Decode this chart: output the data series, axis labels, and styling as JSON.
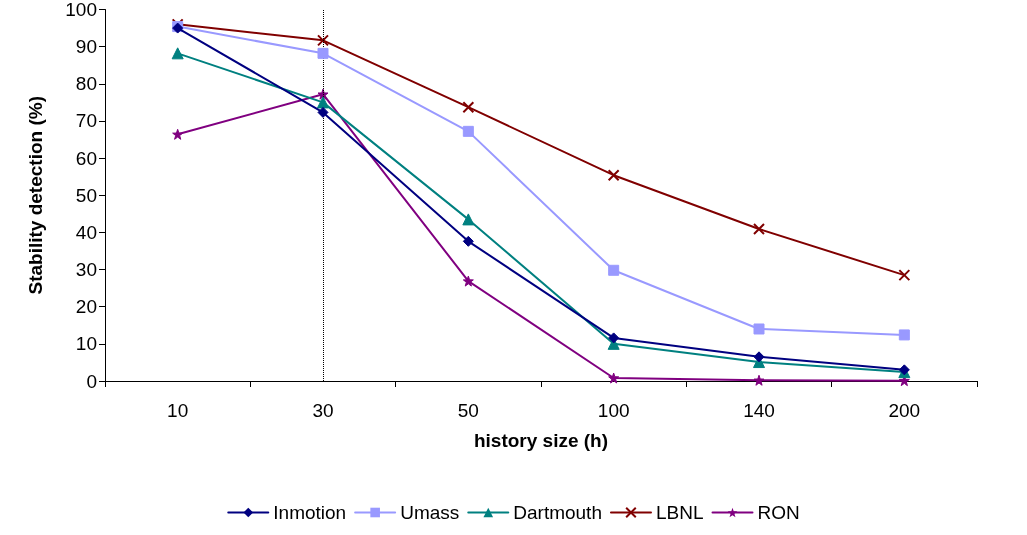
{
  "chart_data": {
    "type": "line",
    "xlabel": "history size (h)",
    "ylabel": "Stability detection (%)",
    "categories": [
      "10",
      "30",
      "50",
      "100",
      "140",
      "200"
    ],
    "series": [
      {
        "name": "Inmotion",
        "color": "#000080",
        "marker": "diamond",
        "values": [
          95,
          72.3,
          37.6,
          11.6,
          6.5,
          3
        ]
      },
      {
        "name": "Umass",
        "color": "#9999ff",
        "marker": "square",
        "values": [
          95.4,
          88.2,
          67.2,
          29.8,
          14,
          12.4
        ]
      },
      {
        "name": "Dartmouth",
        "color": "#008080",
        "marker": "triangle",
        "values": [
          88.2,
          75,
          43.5,
          10,
          5.1,
          2.4
        ]
      },
      {
        "name": "LBNL",
        "color": "#800000",
        "marker": "cross",
        "values": [
          96,
          91.7,
          73.7,
          55.4,
          40.9,
          28.5
        ]
      },
      {
        "name": "RON",
        "color": "#800080",
        "marker": "star",
        "values": [
          66.4,
          77.2,
          26.9,
          0.8,
          0.2,
          0.1
        ]
      }
    ],
    "ylim": [
      0,
      100
    ],
    "yticks": [
      0,
      10,
      20,
      30,
      40,
      50,
      60,
      70,
      80,
      90,
      100
    ],
    "ref_lines": [
      {
        "axis": "x",
        "value": "30",
        "color": "#000000",
        "line_style": "dotted"
      }
    ],
    "grid": false,
    "legend": "bottom",
    "line_style": "solid"
  }
}
